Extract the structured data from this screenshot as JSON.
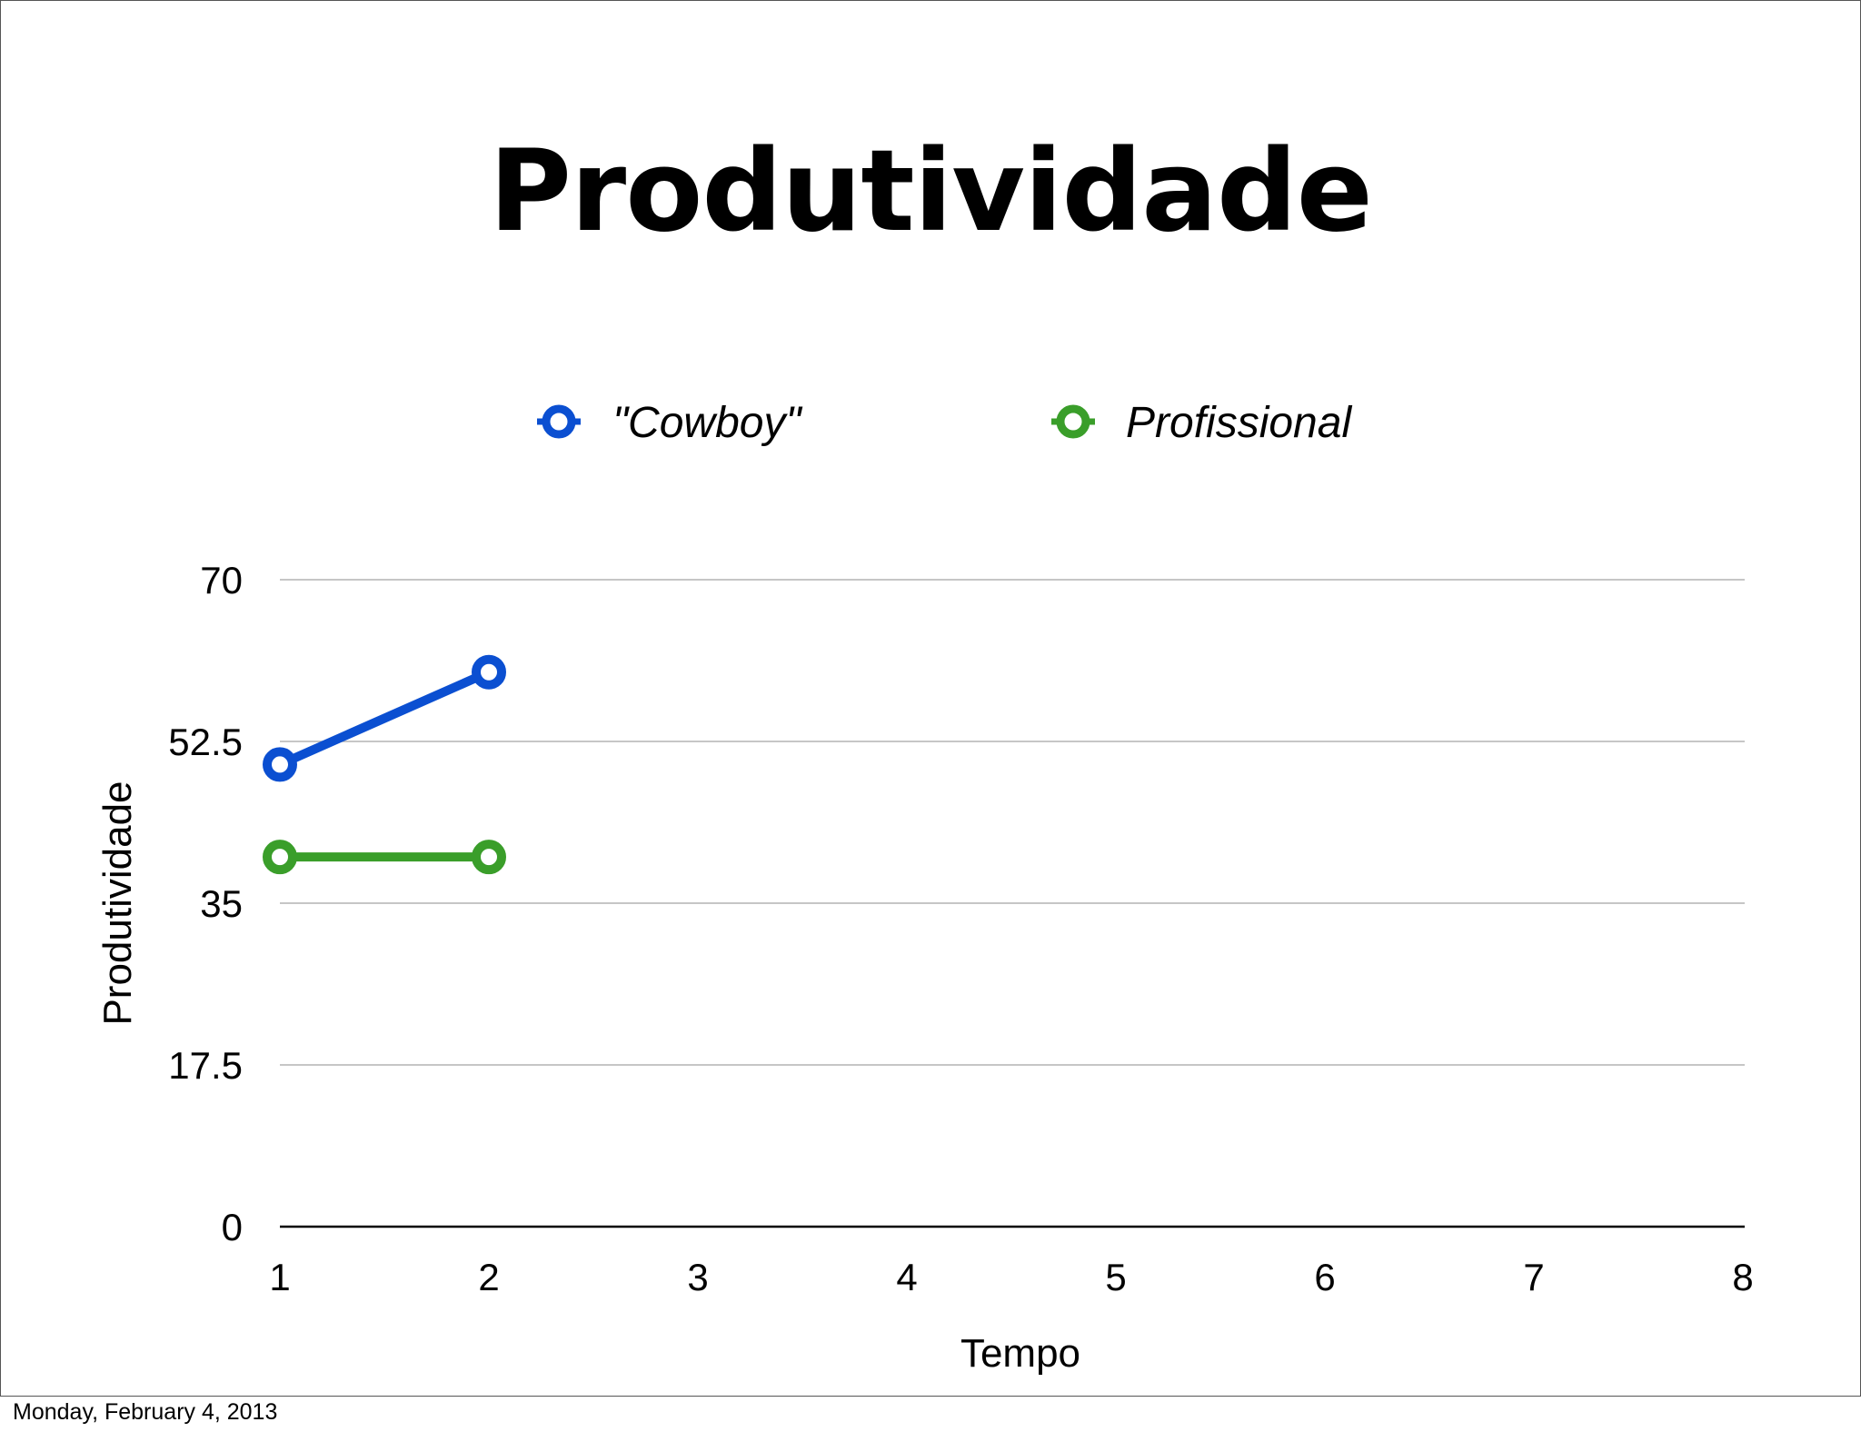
{
  "slide": {
    "title": "Produtividade",
    "footer_date": "Monday, February 4, 2013"
  },
  "chart_data": {
    "type": "line",
    "x": [
      1,
      2,
      3,
      4,
      5,
      6,
      7,
      8
    ],
    "x_tick_labels": [
      "1",
      "2",
      "3",
      "4",
      "5",
      "6",
      "7",
      "8"
    ],
    "y_ticks": [
      0,
      17.5,
      35,
      52.5,
      70
    ],
    "y_tick_labels": [
      "0",
      "17.5",
      "35",
      "52.5",
      "70"
    ],
    "xlim": [
      1,
      8
    ],
    "ylim": [
      0,
      70
    ],
    "xlabel": "Tempo",
    "ylabel": "Produtividade",
    "grid": true,
    "legend_position": "top-center",
    "series": [
      {
        "name": "\"Cowboy\"",
        "color": "#0b4fd1",
        "x": [
          1,
          2
        ],
        "values": [
          50,
          60
        ]
      },
      {
        "name": "Profissional",
        "color": "#3a9e2a",
        "x": [
          1,
          2
        ],
        "values": [
          40,
          40
        ]
      }
    ]
  }
}
